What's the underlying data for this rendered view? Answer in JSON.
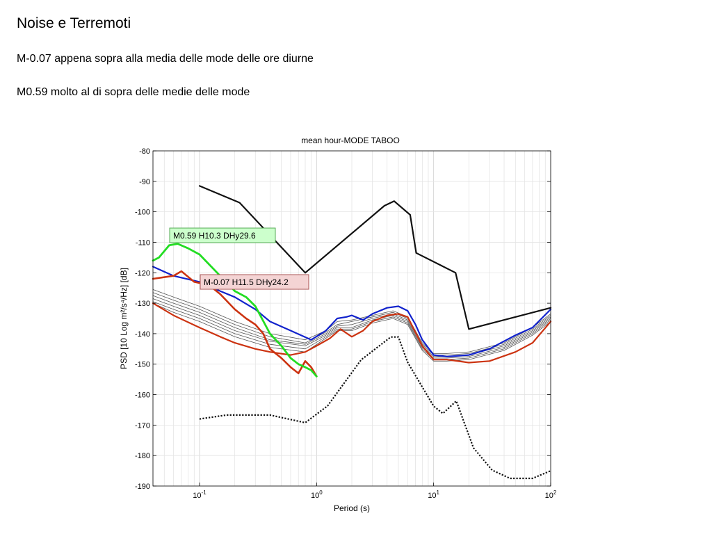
{
  "slide": {
    "title": "Noise e Terremoti",
    "lines": [
      "M-0.07 appena sopra alla media delle mode delle ore diurne",
      "M0.59  molto al di sopra delle medie delle mode"
    ]
  },
  "chart_data": {
    "type": "line",
    "title": "mean hour-MODE TABOO",
    "xlabel": "Period (s)",
    "ylabel": "PSD [10 Log m²/s⁴/Hz] [dB]",
    "xscale": "log",
    "xlim": [
      0.04,
      100
    ],
    "ylim": [
      -190,
      -80
    ],
    "yticks": [
      -80,
      -90,
      -100,
      -110,
      -120,
      -130,
      -140,
      -150,
      -160,
      -170,
      -180,
      -190
    ],
    "xticks": [
      {
        "value": 0.1,
        "base": "10",
        "exp": "-1"
      },
      {
        "value": 1,
        "base": "10",
        "exp": "0"
      },
      {
        "value": 10,
        "base": "10",
        "exp": "1"
      },
      {
        "value": 100,
        "base": "10",
        "exp": "2"
      }
    ],
    "grid": true,
    "colors": {
      "green": "#22dd22",
      "red": "#cc3311",
      "blue": "#1122cc",
      "black": "#111111",
      "gray": "#555555"
    },
    "series": [
      {
        "role": "nhnm",
        "color": "#111111",
        "dash": false,
        "width": 2.2,
        "points": [
          [
            0.1,
            -91.5
          ],
          [
            0.22,
            -97
          ],
          [
            0.8,
            -120
          ],
          [
            3.8,
            -98
          ],
          [
            4.6,
            -96.5
          ],
          [
            6.3,
            -101
          ],
          [
            7.1,
            -113.5
          ],
          [
            15.4,
            -120
          ],
          [
            20,
            -138.5
          ],
          [
            100,
            -131.5
          ]
        ]
      },
      {
        "role": "nlnm",
        "color": "#111111",
        "dash": true,
        "width": 2.2,
        "points": [
          [
            0.1,
            -168
          ],
          [
            0.17,
            -166.7
          ],
          [
            0.4,
            -166.7
          ],
          [
            0.8,
            -169.2
          ],
          [
            1.24,
            -163.7
          ],
          [
            2.4,
            -148.6
          ],
          [
            4.3,
            -141.1
          ],
          [
            5.0,
            -141.1
          ],
          [
            6.0,
            -149.4
          ],
          [
            10,
            -163.8
          ],
          [
            12,
            -166.2
          ],
          [
            15.6,
            -162.1
          ],
          [
            21.9,
            -177.5
          ],
          [
            31.6,
            -184.8
          ],
          [
            45,
            -187.5
          ],
          [
            70,
            -187.5
          ],
          [
            100,
            -185
          ]
        ]
      },
      {
        "role": "mode",
        "color": "#555555",
        "dash": false,
        "width": 0.8,
        "points": [
          [
            0.04,
            -125.5
          ],
          [
            0.06,
            -128
          ],
          [
            0.1,
            -131
          ],
          [
            0.2,
            -136
          ],
          [
            0.4,
            -140
          ],
          [
            0.8,
            -142
          ],
          [
            1.2,
            -139
          ],
          [
            1.5,
            -136
          ],
          [
            2,
            -135.5
          ],
          [
            3,
            -134
          ],
          [
            4.5,
            -132.5
          ],
          [
            6,
            -134.5
          ],
          [
            8,
            -143
          ],
          [
            10,
            -146.5
          ],
          [
            13,
            -146.5
          ],
          [
            20,
            -146
          ],
          [
            40,
            -143
          ],
          [
            70,
            -138
          ],
          [
            100,
            -133.5
          ]
        ]
      },
      {
        "role": "mode",
        "color": "#555555",
        "dash": false,
        "width": 0.8,
        "points": [
          [
            0.04,
            -126.5
          ],
          [
            0.06,
            -129
          ],
          [
            0.1,
            -132
          ],
          [
            0.2,
            -137
          ],
          [
            0.4,
            -141
          ],
          [
            0.8,
            -143
          ],
          [
            1.2,
            -139.5
          ],
          [
            1.5,
            -137
          ],
          [
            2,
            -136
          ],
          [
            3,
            -134.5
          ],
          [
            4.5,
            -133
          ],
          [
            6,
            -135
          ],
          [
            8,
            -143.5
          ],
          [
            10,
            -147
          ],
          [
            13,
            -147
          ],
          [
            20,
            -146.5
          ],
          [
            40,
            -143.5
          ],
          [
            70,
            -138.5
          ],
          [
            100,
            -134
          ]
        ]
      },
      {
        "role": "mode",
        "color": "#555555",
        "dash": false,
        "width": 0.8,
        "points": [
          [
            0.04,
            -127.5
          ],
          [
            0.06,
            -130
          ],
          [
            0.1,
            -133
          ],
          [
            0.2,
            -138
          ],
          [
            0.4,
            -142
          ],
          [
            0.8,
            -143.5
          ],
          [
            1.2,
            -140
          ],
          [
            1.5,
            -137.5
          ],
          [
            2,
            -137
          ],
          [
            3,
            -135
          ],
          [
            4.5,
            -133.5
          ],
          [
            6,
            -135.5
          ],
          [
            8,
            -144
          ],
          [
            10,
            -147.5
          ],
          [
            13,
            -147.5
          ],
          [
            20,
            -147
          ],
          [
            40,
            -144
          ],
          [
            70,
            -139
          ],
          [
            100,
            -134.5
          ]
        ]
      },
      {
        "role": "mode",
        "color": "#555555",
        "dash": false,
        "width": 0.8,
        "points": [
          [
            0.04,
            -128.5
          ],
          [
            0.06,
            -131
          ],
          [
            0.1,
            -134
          ],
          [
            0.2,
            -139
          ],
          [
            0.4,
            -142.5
          ],
          [
            0.8,
            -144
          ],
          [
            1.2,
            -140.5
          ],
          [
            1.5,
            -138
          ],
          [
            2,
            -138
          ],
          [
            3,
            -135.5
          ],
          [
            4.5,
            -134
          ],
          [
            6,
            -136
          ],
          [
            8,
            -144.5
          ],
          [
            10,
            -148
          ],
          [
            13,
            -148
          ],
          [
            20,
            -147.5
          ],
          [
            40,
            -144.5
          ],
          [
            70,
            -139.5
          ],
          [
            100,
            -135
          ]
        ]
      },
      {
        "role": "mode",
        "color": "#555555",
        "dash": false,
        "width": 0.8,
        "points": [
          [
            0.04,
            -129.5
          ],
          [
            0.06,
            -132
          ],
          [
            0.1,
            -135
          ],
          [
            0.2,
            -140
          ],
          [
            0.4,
            -143.5
          ],
          [
            0.8,
            -145
          ],
          [
            1.2,
            -141
          ],
          [
            1.5,
            -138.5
          ],
          [
            2,
            -138.5
          ],
          [
            3,
            -136
          ],
          [
            4.5,
            -134.5
          ],
          [
            6,
            -136.5
          ],
          [
            8,
            -145
          ],
          [
            10,
            -148.5
          ],
          [
            13,
            -148.5
          ],
          [
            20,
            -148
          ],
          [
            40,
            -145
          ],
          [
            70,
            -140
          ],
          [
            100,
            -135.5
          ]
        ]
      },
      {
        "role": "mode",
        "color": "#555555",
        "dash": false,
        "width": 0.8,
        "points": [
          [
            0.04,
            -130
          ],
          [
            0.06,
            -133
          ],
          [
            0.1,
            -136
          ],
          [
            0.2,
            -141
          ],
          [
            0.4,
            -144.5
          ],
          [
            0.8,
            -146
          ],
          [
            1.2,
            -141.5
          ],
          [
            1.5,
            -139
          ],
          [
            2,
            -139
          ],
          [
            3,
            -136.5
          ],
          [
            4.5,
            -135
          ],
          [
            6,
            -137
          ],
          [
            8,
            -145.5
          ],
          [
            10,
            -149
          ],
          [
            13,
            -149
          ],
          [
            20,
            -148.5
          ],
          [
            40,
            -145.5
          ],
          [
            70,
            -140.5
          ],
          [
            100,
            -136
          ]
        ]
      },
      {
        "role": "blue",
        "color": "#1122cc",
        "dash": false,
        "width": 2.2,
        "points": [
          [
            0.04,
            -118
          ],
          [
            0.06,
            -121
          ],
          [
            0.1,
            -123
          ],
          [
            0.15,
            -126
          ],
          [
            0.2,
            -128
          ],
          [
            0.3,
            -132
          ],
          [
            0.4,
            -136
          ],
          [
            0.6,
            -139
          ],
          [
            0.9,
            -142
          ],
          [
            1.2,
            -139
          ],
          [
            1.5,
            -135
          ],
          [
            1.8,
            -134.5
          ],
          [
            2,
            -134
          ],
          [
            2.5,
            -135.5
          ],
          [
            3,
            -133.5
          ],
          [
            4,
            -131.5
          ],
          [
            5,
            -131
          ],
          [
            6,
            -132.5
          ],
          [
            7,
            -137
          ],
          [
            8,
            -142
          ],
          [
            10,
            -147
          ],
          [
            13,
            -147.5
          ],
          [
            20,
            -147
          ],
          [
            30,
            -145
          ],
          [
            50,
            -140.5
          ],
          [
            70,
            -138
          ],
          [
            100,
            -132
          ]
        ]
      },
      {
        "role": "red-edge",
        "color": "#cc3311",
        "dash": false,
        "width": 2.2,
        "points": [
          [
            0.04,
            -130
          ],
          [
            0.06,
            -134
          ],
          [
            0.1,
            -138
          ],
          [
            0.15,
            -141
          ],
          [
            0.2,
            -143
          ],
          [
            0.3,
            -145
          ],
          [
            0.4,
            -146
          ],
          [
            0.6,
            -147
          ],
          [
            0.8,
            -146
          ],
          [
            1,
            -144
          ],
          [
            1.3,
            -141.5
          ],
          [
            1.6,
            -138.5
          ],
          [
            2,
            -141
          ],
          [
            2.5,
            -139
          ],
          [
            3,
            -136
          ],
          [
            4,
            -134
          ],
          [
            5,
            -133.5
          ],
          [
            6,
            -134.5
          ],
          [
            8,
            -144
          ],
          [
            10,
            -148.5
          ],
          [
            13,
            -148.5
          ],
          [
            20,
            -149.5
          ],
          [
            30,
            -149
          ],
          [
            50,
            -146
          ],
          [
            70,
            -143
          ],
          [
            100,
            -136
          ]
        ]
      },
      {
        "role": "red-event",
        "color": "#cc3311",
        "dash": false,
        "width": 2.6,
        "points": [
          [
            0.04,
            -122
          ],
          [
            0.06,
            -121
          ],
          [
            0.07,
            -119.5
          ],
          [
            0.09,
            -123
          ],
          [
            0.12,
            -124
          ],
          [
            0.15,
            -127
          ],
          [
            0.2,
            -132
          ],
          [
            0.25,
            -135
          ],
          [
            0.3,
            -137
          ],
          [
            0.35,
            -140
          ],
          [
            0.4,
            -145
          ],
          [
            0.5,
            -148
          ],
          [
            0.6,
            -151
          ],
          [
            0.7,
            -153
          ],
          [
            0.8,
            -149
          ],
          [
            0.9,
            -151
          ],
          [
            1,
            -154
          ]
        ]
      },
      {
        "role": "green-event",
        "color": "#22dd22",
        "dash": false,
        "width": 2.8,
        "points": [
          [
            0.04,
            -116
          ],
          [
            0.045,
            -115
          ],
          [
            0.055,
            -111
          ],
          [
            0.065,
            -110.5
          ],
          [
            0.08,
            -112
          ],
          [
            0.1,
            -114
          ],
          [
            0.15,
            -121
          ],
          [
            0.2,
            -126
          ],
          [
            0.25,
            -128
          ],
          [
            0.3,
            -131
          ],
          [
            0.4,
            -140
          ],
          [
            0.5,
            -144
          ],
          [
            0.6,
            -148
          ],
          [
            0.7,
            -150
          ],
          [
            0.8,
            -151
          ],
          [
            0.9,
            -152
          ],
          [
            1,
            -154
          ]
        ]
      }
    ],
    "annotations": [
      {
        "label": "M0.59 H10.3 DHy29.6",
        "fill": "#ccffcc",
        "border": "#55aa55"
      },
      {
        "label": "M-0.07 H11.5 DHy24.2",
        "fill": "#f4d4d4",
        "border": "#aa5555"
      }
    ]
  }
}
